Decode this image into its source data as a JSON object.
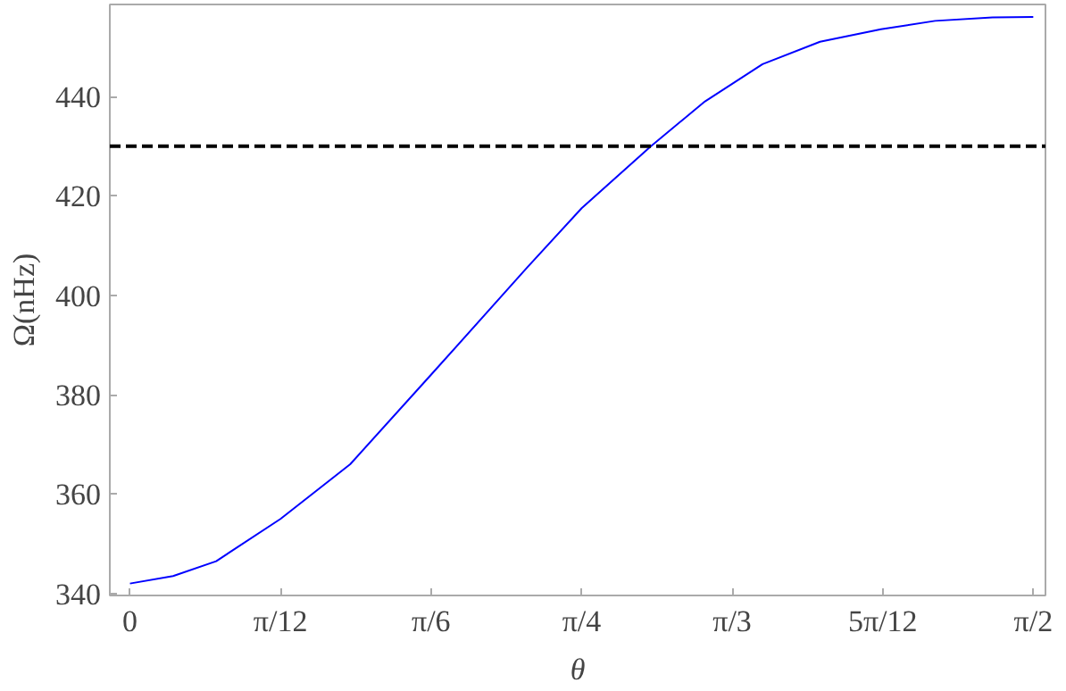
{
  "chart_data": {
    "type": "line",
    "xlabel": "θ",
    "ylabel": "Ω(nHz)",
    "x": [
      0,
      0.075,
      0.15,
      0.2618,
      0.383,
      0.5236,
      0.69,
      0.7854,
      0.906,
      1.0,
      1.1,
      1.2,
      1.306,
      1.4,
      1.5,
      1.5708
    ],
    "series": [
      {
        "color": "#0000ff",
        "values": [
          342,
          343.5,
          346.5,
          355,
          366,
          384,
          405.5,
          417.5,
          430,
          439,
          446.5,
          451,
          453.5,
          455.2,
          455.9,
          456
        ]
      }
    ],
    "xlim": [
      -0.035,
      1.592
    ],
    "ylim": [
      339.6,
      458.5
    ],
    "xticks": [
      0,
      {
        "value": 0.2618,
        "label": "π/12"
      },
      {
        "value": 0.5236,
        "label": "π/6"
      },
      {
        "value": 0.7854,
        "label": "π/4"
      },
      {
        "value": 1.0472,
        "label": "π/3"
      },
      {
        "value": 1.309,
        "label": "5π/12"
      },
      {
        "value": 1.5708,
        "label": "π/2"
      }
    ],
    "yticks": [
      340,
      360,
      380,
      400,
      420,
      440
    ],
    "ref_lines": [
      {
        "axis": "y",
        "value": 430,
        "color": "#000000",
        "line_style": "dashed"
      }
    ],
    "grid": false,
    "marker": "none",
    "line_style": "solid"
  }
}
